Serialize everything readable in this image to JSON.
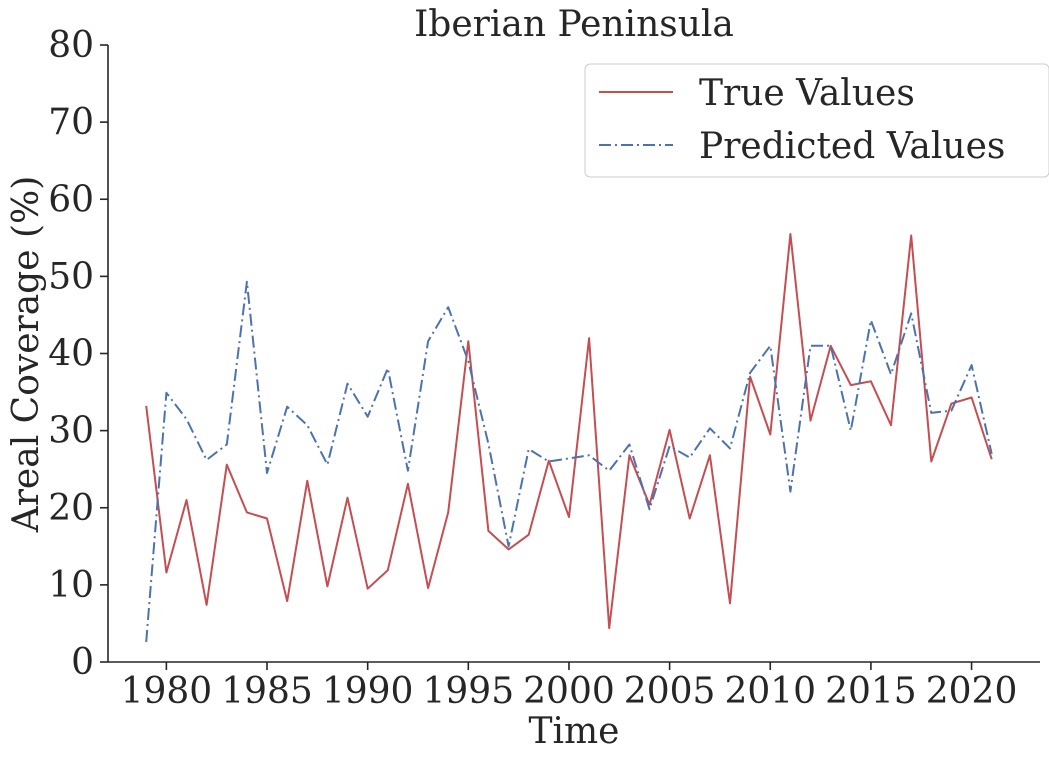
{
  "chart_data": {
    "type": "line",
    "title": "Iberian Peninsula",
    "xlabel": "Time",
    "ylabel": "Areal Coverage (%)",
    "xlim": [
      1977.1,
      2023.4
    ],
    "ylim": [
      0,
      80
    ],
    "xticks": [
      1980,
      1985,
      1990,
      1995,
      2000,
      2005,
      2010,
      2015,
      2020
    ],
    "yticks": [
      0,
      10,
      20,
      30,
      40,
      50,
      60,
      70,
      80
    ],
    "grid": false,
    "legend_position": "top-right",
    "x": [
      1979,
      1980,
      1981,
      1982,
      1983,
      1984,
      1985,
      1986,
      1987,
      1988,
      1989,
      1990,
      1991,
      1992,
      1993,
      1994,
      1995,
      1996,
      1997,
      1998,
      1999,
      2000,
      2001,
      2002,
      2003,
      2004,
      2005,
      2006,
      2007,
      2008,
      2009,
      2010,
      2011,
      2012,
      2013,
      2014,
      2015,
      2016,
      2017,
      2018,
      2019,
      2020,
      2021
    ],
    "series": [
      {
        "name": "True Values",
        "color": "#c44e52",
        "style": "solid",
        "values": [
          33.2,
          11.6,
          21.0,
          7.4,
          25.6,
          19.4,
          18.6,
          7.9,
          23.5,
          9.8,
          21.3,
          9.5,
          11.9,
          23.1,
          9.6,
          19.4,
          41.6,
          17.0,
          14.6,
          16.5,
          26.1,
          18.8,
          42.0,
          4.4,
          26.8,
          20.4,
          30.1,
          18.6,
          26.8,
          7.6,
          37.0,
          29.5,
          55.5,
          31.3,
          41.0,
          35.9,
          36.4,
          30.7,
          55.3,
          26.0,
          33.5,
          34.3,
          26.3
        ]
      },
      {
        "name": "Predicted Values",
        "color": "#4c72b0",
        "style": "dashdot",
        "values": [
          2.6,
          34.9,
          31.5,
          26.2,
          28.2,
          49.3,
          24.5,
          33.1,
          30.7,
          25.6,
          36.1,
          31.8,
          38.1,
          24.8,
          41.6,
          46.0,
          39.0,
          28.3,
          15.0,
          27.6,
          26.0,
          26.4,
          26.8,
          24.8,
          28.2,
          19.8,
          28.0,
          26.5,
          30.3,
          27.7,
          37.5,
          41.0,
          22.1,
          41.0,
          41.0,
          30.0,
          44.3,
          37.3,
          45.2,
          32.3,
          32.6,
          38.5,
          27.0
        ]
      }
    ]
  }
}
